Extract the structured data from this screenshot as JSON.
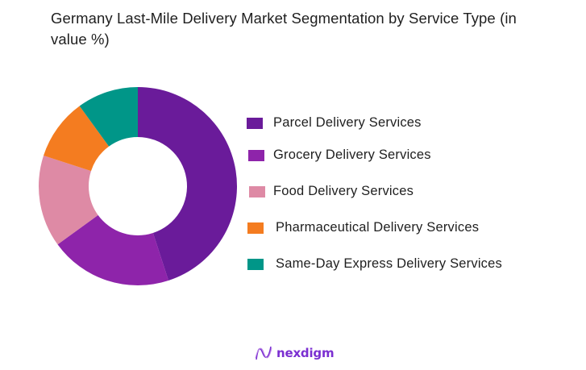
{
  "title": "Germany Last-Mile Delivery Market  Segmentation by Service Type (in value %)",
  "brand": {
    "name": "nexdigm",
    "icon": "nexdigm-wave-logo-icon"
  },
  "chart_data": {
    "type": "pie",
    "subtype": "donut",
    "title": "Germany Last-Mile Delivery Market  Segmentation by Service Type (in value %)",
    "categories": [
      "Parcel Delivery Services",
      "Grocery Delivery Services",
      "Food Delivery Services",
      "Pharmaceutical Delivery Services",
      "Same-Day Express Delivery Services"
    ],
    "values": [
      45,
      20,
      15,
      10,
      10
    ],
    "colors": [
      "#6a1b9a",
      "#8e24aa",
      "#de8aa5",
      "#f47c20",
      "#009688"
    ],
    "start_angle": "12 o'clock, clockwise",
    "legend_position": "right",
    "data_labels": false
  },
  "legend": {
    "items": [
      {
        "label": "Parcel Delivery Services",
        "color": "#6a1b9a"
      },
      {
        "label": "Grocery Delivery Services",
        "color": "#8e24aa"
      },
      {
        "label": "Food Delivery Services",
        "color": "#de8aa5"
      },
      {
        "label": "Pharmaceutical Delivery Services",
        "color": "#f47c20"
      },
      {
        "label": "Same-Day Express Delivery Services",
        "color": "#009688"
      }
    ]
  }
}
